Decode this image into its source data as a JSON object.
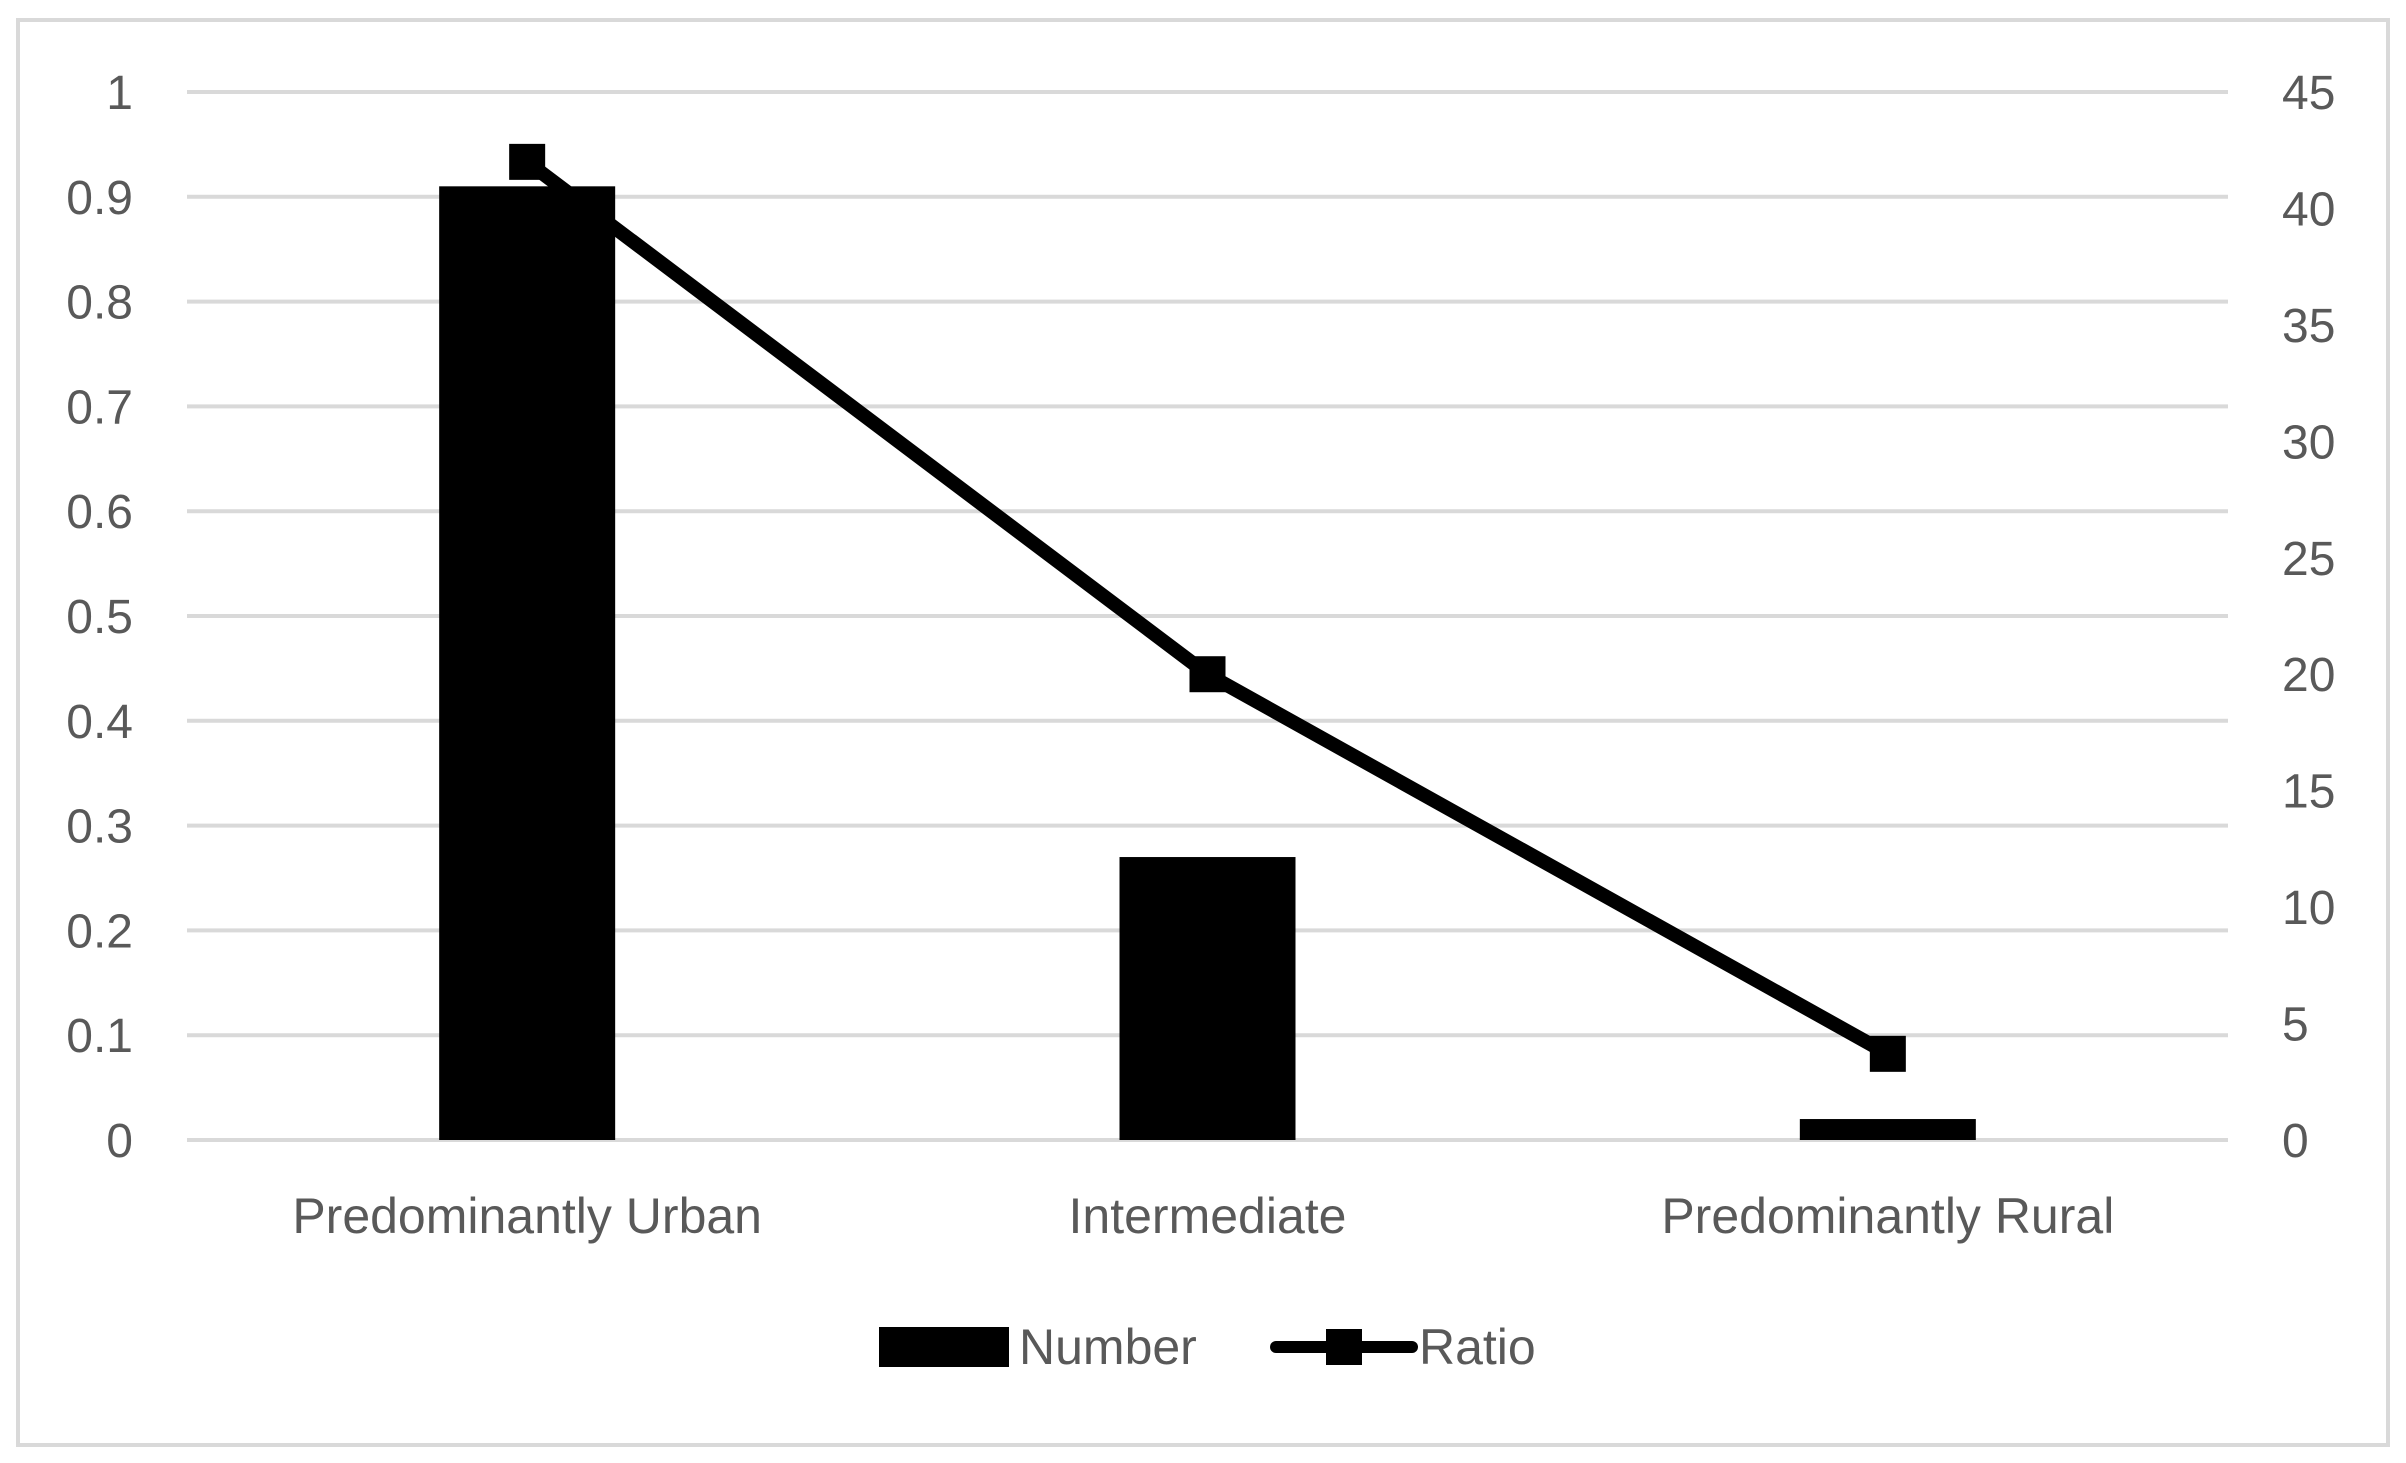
{
  "chart_data": {
    "type": "bar",
    "categories": [
      "Predominantly Urban",
      "Intermediate",
      "Predominantly Rural"
    ],
    "series": [
      {
        "name": "Number",
        "type": "bar",
        "axis": "left",
        "values": [
          0.91,
          0.27,
          0.02
        ],
        "color": "#000000"
      },
      {
        "name": "Ratio",
        "type": "line",
        "axis": "right",
        "values": [
          42,
          20,
          3.7
        ],
        "color": "#000000",
        "marker": "square"
      }
    ],
    "y_left": {
      "ylim": [
        0,
        1
      ],
      "ticks": [
        "0",
        "0.1",
        "0.2",
        "0.3",
        "0.4",
        "0.5",
        "0.6",
        "0.7",
        "0.8",
        "0.9",
        "1"
      ]
    },
    "y_right": {
      "ylim": [
        0,
        45
      ],
      "ticks": [
        "0",
        "5",
        "10",
        "15",
        "20",
        "25",
        "30",
        "35",
        "40",
        "45"
      ]
    },
    "grid": true,
    "legend_position": "bottom",
    "legend": [
      "Number",
      "Ratio"
    ],
    "colors": {
      "grid": "#d9d9d9",
      "text": "#595959",
      "frame": "#d9d9d9",
      "series": "#000000"
    }
  }
}
